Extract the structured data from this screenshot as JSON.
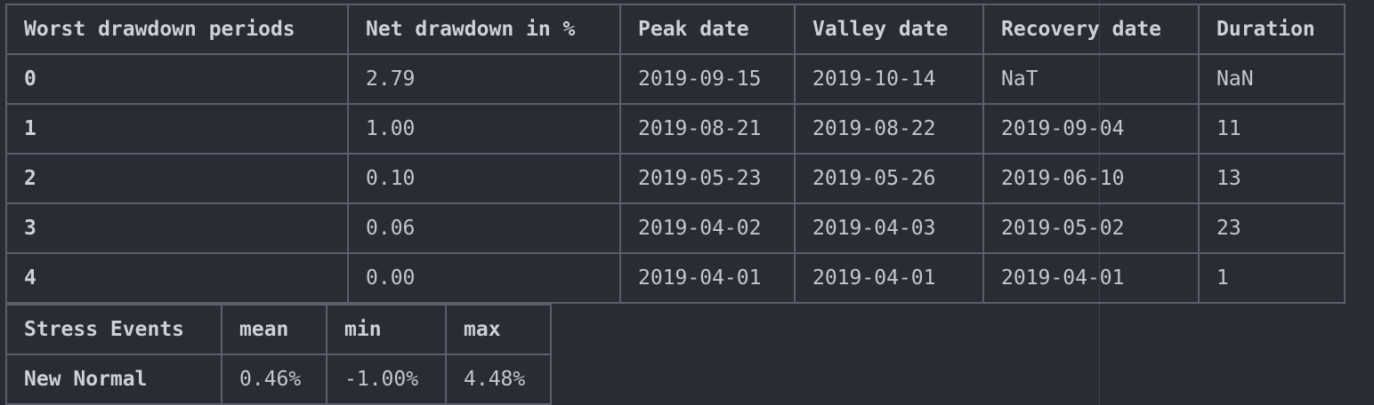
{
  "drawdown_table": {
    "headers": [
      "Worst drawdown periods",
      "Net drawdown in %",
      "Peak date",
      "Valley date",
      "Recovery date",
      "Duration"
    ],
    "rows": [
      [
        "0",
        "2.79",
        "2019-09-15",
        "2019-10-14",
        "NaT",
        "NaN"
      ],
      [
        "1",
        "1.00",
        "2019-08-21",
        "2019-08-22",
        "2019-09-04",
        "11"
      ],
      [
        "2",
        "0.10",
        "2019-05-23",
        "2019-05-26",
        "2019-06-10",
        "13"
      ],
      [
        "3",
        "0.06",
        "2019-04-02",
        "2019-04-03",
        "2019-05-02",
        "23"
      ],
      [
        "4",
        "0.00",
        "2019-04-01",
        "2019-04-01",
        "2019-04-01",
        "1"
      ]
    ]
  },
  "stress_table": {
    "headers": [
      "Stress Events",
      "mean",
      "min",
      "max"
    ],
    "rows": [
      [
        "New Normal",
        "0.46%",
        "-1.00%",
        "4.48%"
      ]
    ]
  },
  "colors": {
    "background": "#282c35",
    "border": "#5a5f69",
    "text": "#c5c9d1"
  }
}
